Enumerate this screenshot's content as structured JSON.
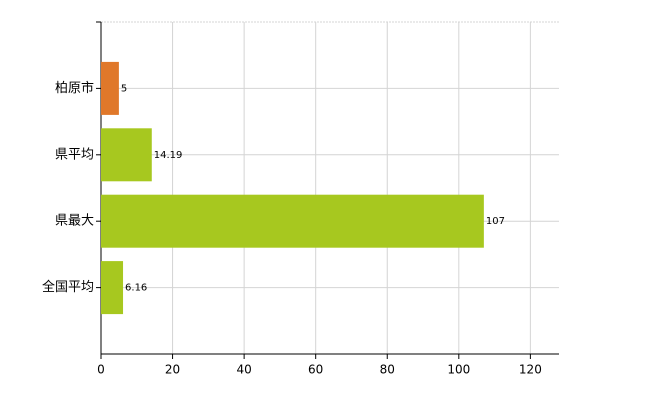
{
  "chart_data": {
    "type": "bar",
    "orientation": "horizontal",
    "categories": [
      "柏原市",
      "県平均",
      "県最大",
      "全国平均"
    ],
    "values": [
      5,
      14.19,
      107,
      6.16
    ],
    "colors": [
      "#e0782a",
      "#a7c81f",
      "#a7c81f",
      "#a7c81f"
    ],
    "xlim": [
      0,
      128
    ],
    "xticks": [
      0,
      20,
      40,
      60,
      80,
      100,
      120
    ],
    "grid": true
  }
}
